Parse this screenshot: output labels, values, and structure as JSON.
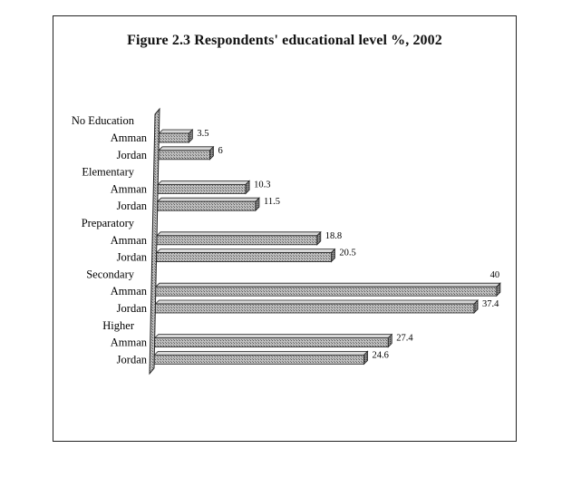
{
  "chart_data": {
    "type": "bar",
    "orientation": "horizontal",
    "title": "Figure 2.3 Respondents' educational level %, 2002",
    "xlabel": "",
    "ylabel": "",
    "xlim": [
      0,
      40
    ],
    "grid": false,
    "legend": "none",
    "style_3d": true,
    "bar_color": "#9a9a9a",
    "groups": [
      {
        "name": "No Education",
        "rows": [
          {
            "label": "Amman",
            "value": 3.5
          },
          {
            "label": "Jordan",
            "value": 6
          }
        ]
      },
      {
        "name": "Elementary",
        "rows": [
          {
            "label": "Amman",
            "value": 10.3
          },
          {
            "label": "Jordan",
            "value": 11.5
          }
        ]
      },
      {
        "name": "Preparatory",
        "rows": [
          {
            "label": "Amman",
            "value": 18.8
          },
          {
            "label": "Jordan",
            "value": 20.5
          }
        ]
      },
      {
        "name": "Secondary",
        "rows": [
          {
            "label": "Amman",
            "value": 40
          },
          {
            "label": "Jordan",
            "value": 37.4
          }
        ]
      },
      {
        "name": "Higher",
        "rows": [
          {
            "label": "Amman",
            "value": 27.4
          },
          {
            "label": "Jordan",
            "value": 24.6
          }
        ]
      }
    ]
  }
}
